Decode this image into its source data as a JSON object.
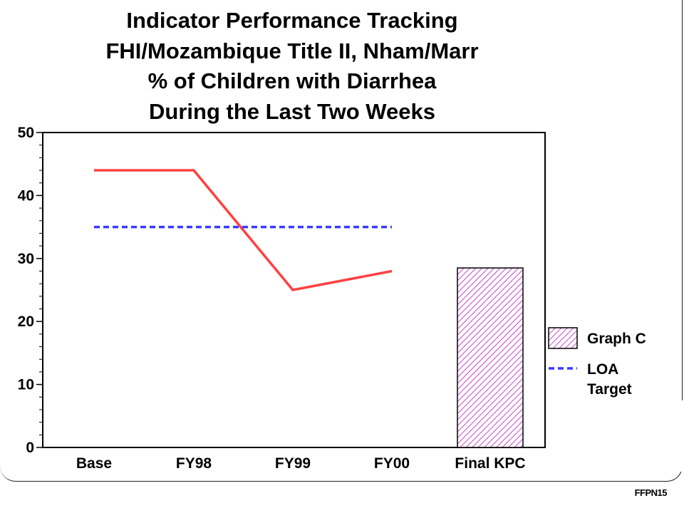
{
  "title_lines": [
    "Indicator Performance Tracking",
    "FHI/Mozambique Title II, Nham/Marr",
    "% of Children with Diarrhea",
    "During the Last Two Weeks"
  ],
  "footer_code": "FFPN15",
  "chart_data": {
    "type": "line",
    "title": "Indicator Performance Tracking FHI/Mozambique Title II, Nham/Marr % of Children with Diarrhea During the Last Two Weeks",
    "xlabel": "",
    "ylabel": "",
    "ylim": [
      0,
      50
    ],
    "yticks": [
      0,
      10,
      20,
      30,
      40,
      50
    ],
    "categories": [
      "Base",
      "FY98",
      "FY99",
      "FY00",
      "Final KPC"
    ],
    "grid": false,
    "legend_position": "right",
    "series": [
      {
        "name": "",
        "kind": "line",
        "color": "#ff4040",
        "values": [
          44,
          44,
          25,
          28,
          null
        ]
      },
      {
        "name": "LOA Target",
        "kind": "dashed-line",
        "color": "#3a3aff",
        "values": [
          35,
          35,
          35,
          35,
          null
        ]
      },
      {
        "name": "Graph C",
        "kind": "bar",
        "color": "#e9a8e9",
        "values": [
          null,
          null,
          null,
          null,
          28.5
        ]
      }
    ],
    "legend": [
      {
        "label": "Graph C",
        "kind": "bar"
      },
      {
        "label": "LOA",
        "kind": "dashed-line"
      },
      {
        "label": "Target",
        "kind": "dashed-line-continued"
      }
    ]
  }
}
